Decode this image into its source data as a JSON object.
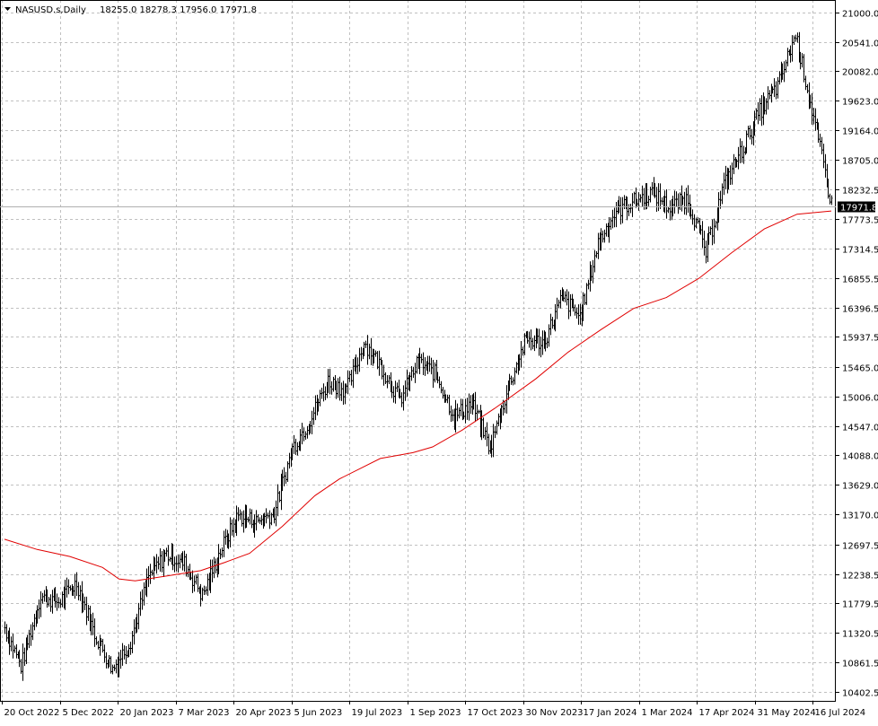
{
  "header": {
    "symbol": "NASUSD.s,Daily",
    "ohlc": "18255.0 18278.3 17956.0 17971.8"
  },
  "current_price_label": "17971.8",
  "colors": {
    "background": "#ffffff",
    "bars": "#000000",
    "moving_average": "#e00000",
    "grid": "#c0c0c0",
    "price_label_bg": "#000000",
    "price_label_text": "#ffffff"
  },
  "chart_data": {
    "type": "line",
    "title": "",
    "xlabel": "",
    "ylabel": "",
    "ylim": [
      10300,
      21150
    ],
    "current_price": 17971.8,
    "y_ticks": [
      "21000.0",
      "20541.0",
      "20082.0",
      "19623.0",
      "19164.0",
      "18705.0",
      "18232.5",
      "17773.5",
      "17314.5",
      "16855.5",
      "16396.5",
      "15937.5",
      "15465.0",
      "15006.0",
      "14547.0",
      "14088.0",
      "13629.0",
      "13170.0",
      "12697.5",
      "12238.5",
      "11779.5",
      "11320.5",
      "10861.5",
      "10402.5"
    ],
    "x_ticks": [
      "20 Oct 2022",
      "5 Dec 2022",
      "20 Jan 2023",
      "7 Mar 2023",
      "20 Apr 2023",
      "5 Jun 2023",
      "19 Jul 2023",
      "1 Sep 2023",
      "17 Oct 2023",
      "30 Nov 2023",
      "17 Jan 2024",
      "1 Mar 2024",
      "17 Apr 2024",
      "31 May 2024",
      "16 Jul 2024"
    ],
    "price_path": [
      [
        0,
        11400
      ],
      [
        10,
        10800
      ],
      [
        22,
        11900
      ],
      [
        33,
        11800
      ],
      [
        44,
        12100
      ],
      [
        55,
        11300
      ],
      [
        66,
        10750
      ],
      [
        77,
        11200
      ],
      [
        88,
        12200
      ],
      [
        99,
        12550
      ],
      [
        110,
        12400
      ],
      [
        121,
        11900
      ],
      [
        132,
        12600
      ],
      [
        143,
        13150
      ],
      [
        154,
        13050
      ],
      [
        165,
        13200
      ],
      [
        176,
        14200
      ],
      [
        187,
        14650
      ],
      [
        198,
        15250
      ],
      [
        209,
        15100
      ],
      [
        220,
        15850
      ],
      [
        231,
        15450
      ],
      [
        242,
        14950
      ],
      [
        253,
        15550
      ],
      [
        264,
        15350
      ],
      [
        275,
        14700
      ],
      [
        286,
        14900
      ],
      [
        297,
        14200
      ],
      [
        308,
        15150
      ],
      [
        319,
        15900
      ],
      [
        330,
        15850
      ],
      [
        341,
        16550
      ],
      [
        352,
        16250
      ],
      [
        363,
        17400
      ],
      [
        374,
        17900
      ],
      [
        385,
        18050
      ],
      [
        396,
        18200
      ],
      [
        407,
        17950
      ],
      [
        418,
        18100
      ],
      [
        429,
        17250
      ],
      [
        440,
        18300
      ],
      [
        451,
        18850
      ],
      [
        462,
        19450
      ],
      [
        473,
        19850
      ],
      [
        484,
        20650
      ],
      [
        495,
        19350
      ],
      [
        506,
        18000
      ]
    ],
    "series": [
      {
        "values": [
          [
            0,
            12780
          ],
          [
            20,
            12620
          ],
          [
            40,
            12510
          ],
          [
            60,
            12340
          ],
          [
            70,
            12160
          ],
          [
            80,
            12130
          ],
          [
            100,
            12210
          ],
          [
            120,
            12290
          ],
          [
            135,
            12420
          ],
          [
            150,
            12560
          ],
          [
            170,
            12980
          ],
          [
            190,
            13460
          ],
          [
            205,
            13720
          ],
          [
            230,
            14040
          ],
          [
            250,
            14130
          ],
          [
            262,
            14220
          ],
          [
            280,
            14480
          ],
          [
            300,
            14820
          ],
          [
            325,
            15280
          ],
          [
            345,
            15700
          ],
          [
            365,
            16050
          ],
          [
            385,
            16380
          ],
          [
            405,
            16550
          ],
          [
            425,
            16850
          ],
          [
            445,
            17250
          ],
          [
            465,
            17620
          ],
          [
            485,
            17850
          ],
          [
            506,
            17900
          ]
        ]
      }
    ]
  }
}
